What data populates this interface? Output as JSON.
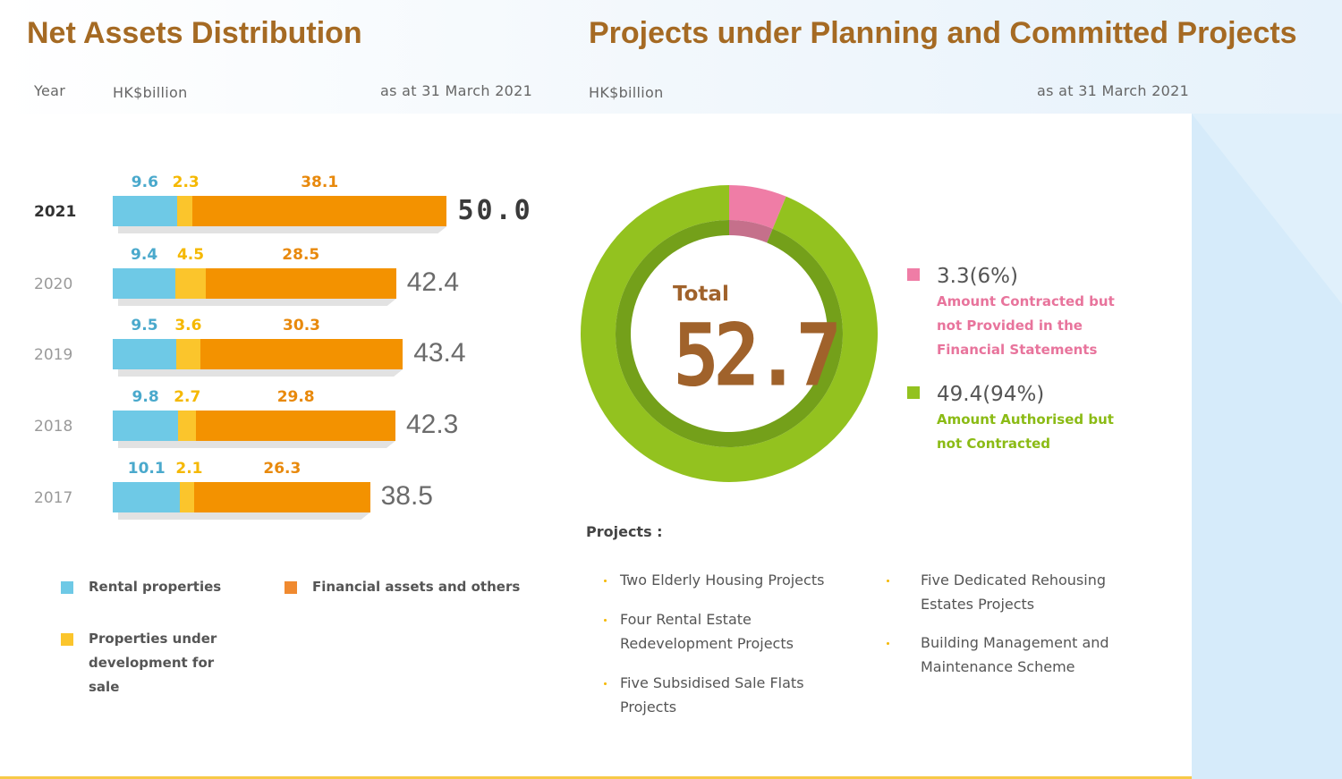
{
  "left": {
    "title": "Net Assets Distribution",
    "year_label": "Year",
    "unit": "HK$billion",
    "date": "as at 31 March 2021"
  },
  "right": {
    "title": "Projects under Planning and Committed Projects",
    "unit": "HK$billion",
    "date": "as at 31 March 2021"
  },
  "chart_data": [
    {
      "type": "bar",
      "orientation": "horizontal-stacked",
      "categories": [
        "2021",
        "2020",
        "2019",
        "2018",
        "2017"
      ],
      "series": [
        {
          "name": "Rental properties",
          "color": "#6ec9e6",
          "values": [
            9.6,
            9.4,
            9.5,
            9.8,
            10.1
          ],
          "labels": [
            "9.6",
            "9.4",
            "9.5",
            "9.8",
            "10.1"
          ]
        },
        {
          "name": "Properties under development for sale",
          "color": "#fbc52c",
          "values": [
            2.3,
            4.5,
            3.6,
            2.7,
            2.1
          ],
          "labels": [
            "2.3",
            "4.5",
            "3.6",
            "2.7",
            "2.1"
          ]
        },
        {
          "name": "Financial assets and others",
          "color": "#f39200",
          "values": [
            38.1,
            28.5,
            30.3,
            29.8,
            26.3
          ],
          "labels": [
            "38.1",
            "28.5",
            "30.3",
            "29.8",
            "26.3"
          ]
        }
      ],
      "totals": [
        "50.0",
        "42.4",
        "43.4",
        "42.3",
        "38.5"
      ],
      "label_colors": [
        "#4aa9cc",
        "#f5b800",
        "#e8890c"
      ],
      "legend": [
        {
          "name": "Rental properties",
          "color": "#6ec9e6"
        },
        {
          "name": "Financial assets and others",
          "color": "#f08a30"
        },
        {
          "name": "Properties under development for sale",
          "color": "#fbc52c"
        }
      ]
    },
    {
      "type": "pie",
      "variant": "donut",
      "total_label": "Total",
      "total_value": "52.7",
      "slices": [
        {
          "value": 3.3,
          "percent": 6,
          "label": "3.3(6%)",
          "name": "Amount Contracted but not Provided in the Financial Statements",
          "color": "#ef7da6",
          "inner_color": "#c5708b"
        },
        {
          "value": 49.4,
          "percent": 94,
          "label": "49.4(94%)",
          "name": "Amount Authorised but not Contracted",
          "color": "#93c21f",
          "inner_color": "#74a01a"
        }
      ]
    }
  ],
  "projects": {
    "heading": "Projects :",
    "col1": [
      "Two Elderly Housing Projects",
      "Four Rental Estate Redevelopment Projects",
      "Five Subsidised Sale Flats Projects"
    ],
    "col2": [
      "Five Dedicated Rehousing Estates Projects",
      "Building Management and Maintenance Scheme"
    ]
  },
  "colors": {
    "title": "#a56a23",
    "pink_text": "#e8749c",
    "green_text": "#8bbb15"
  }
}
